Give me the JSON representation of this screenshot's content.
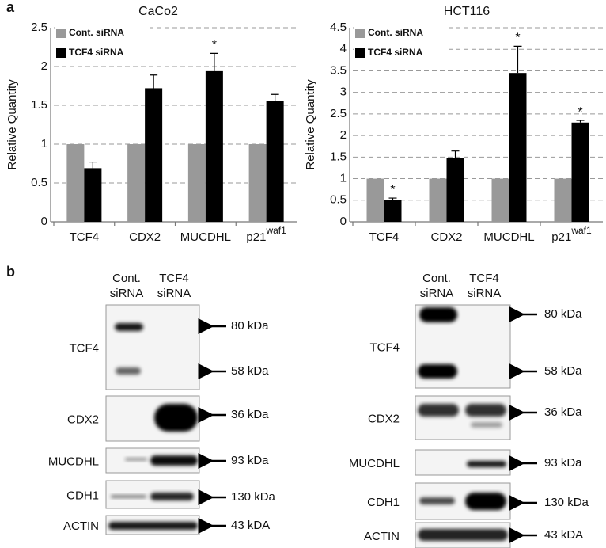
{
  "panel_a_label": "a",
  "panel_b_label": "b",
  "chart_data": [
    {
      "type": "bar",
      "title": "CaCo2",
      "ylabel": "Relative Quantity",
      "categories": [
        "TCF4",
        "CDX2",
        "MUCDHL",
        "p21"
      ],
      "category_superscripts": [
        null,
        null,
        null,
        "waf1"
      ],
      "series": [
        {
          "name": "Cont. siRNA",
          "color": "#999999",
          "values": [
            1,
            1,
            1,
            1
          ]
        },
        {
          "name": "TCF4 siRNA",
          "color": "#000000",
          "values": [
            0.69,
            1.72,
            1.94,
            1.56
          ],
          "errors": [
            0.08,
            0.17,
            0.23,
            0.08
          ]
        }
      ],
      "annotations": [
        null,
        null,
        "*",
        null
      ],
      "ylim": [
        0,
        2.5
      ],
      "yticks": [
        0,
        0.5,
        1,
        1.5,
        2,
        2.5
      ],
      "grid": true,
      "legend": "top-left"
    },
    {
      "type": "bar",
      "title": "HCT116",
      "ylabel": "Relative Quantity",
      "categories": [
        "TCF4",
        "CDX2",
        "MUCDHL",
        "p21"
      ],
      "category_superscripts": [
        null,
        null,
        null,
        "waf1"
      ],
      "series": [
        {
          "name": "Cont. siRNA",
          "color": "#999999",
          "values": [
            1,
            1,
            1,
            1
          ]
        },
        {
          "name": "TCF4 siRNA",
          "color": "#000000",
          "values": [
            0.5,
            1.47,
            3.45,
            2.3
          ],
          "errors": [
            0.05,
            0.17,
            0.62,
            0.05
          ]
        }
      ],
      "annotations": [
        "*",
        null,
        "*",
        "*"
      ],
      "ylim": [
        0,
        4.5
      ],
      "yticks": [
        0,
        0.5,
        1,
        1.5,
        2,
        2.5,
        3,
        3.5,
        4,
        4.5
      ],
      "grid": true,
      "legend": "top-left"
    }
  ],
  "blots": [
    {
      "lanes": [
        [
          "Cont.",
          "siRNA"
        ],
        [
          "TCF4",
          "siRNA"
        ]
      ],
      "rows": [
        {
          "label": "TCF4",
          "markers": [
            "80 kDa",
            "58 kDa"
          ]
        },
        {
          "label": "CDX2",
          "markers": [
            "36 kDa"
          ]
        },
        {
          "label": "MUCDHL",
          "markers": [
            "93 kDa"
          ]
        },
        {
          "label": "CDH1",
          "markers": [
            "130 kDa"
          ]
        },
        {
          "label": "ACTIN",
          "markers": [
            "43 kDA"
          ]
        }
      ]
    },
    {
      "lanes": [
        [
          "Cont.",
          "siRNA"
        ],
        [
          "TCF4",
          "siRNA"
        ]
      ],
      "rows": [
        {
          "label": "TCF4",
          "markers": [
            "80 kDa",
            "58 kDa"
          ]
        },
        {
          "label": "CDX2",
          "markers": [
            "36 kDa"
          ]
        },
        {
          "label": "MUCDHL",
          "markers": [
            "93 kDa"
          ]
        },
        {
          "label": "CDH1",
          "markers": [
            "130 kDa"
          ]
        },
        {
          "label": "ACTIN",
          "markers": [
            "43 kDA"
          ]
        }
      ]
    }
  ]
}
